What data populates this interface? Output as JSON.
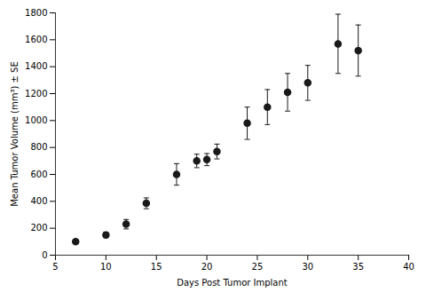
{
  "chart_data": {
    "type": "scatter",
    "xlabel": "Days Post Tumor Implant",
    "ylabel": "Mean Tumor Volume (mm³) ± SE",
    "x": [
      7,
      10,
      12,
      14,
      17,
      19,
      20,
      21,
      24,
      26,
      28,
      30,
      33,
      35
    ],
    "values": [
      100,
      150,
      230,
      385,
      600,
      700,
      710,
      770,
      980,
      1100,
      1210,
      1280,
      1570,
      1520
    ],
    "yerr": [
      15,
      20,
      35,
      40,
      80,
      50,
      45,
      55,
      120,
      130,
      140,
      130,
      220,
      190
    ],
    "color": "#1a1a1a",
    "marker": "o",
    "xlim": [
      5,
      40
    ],
    "ylim": [
      0,
      1800
    ],
    "xticks": [
      5,
      10,
      15,
      20,
      25,
      30,
      35,
      40
    ],
    "yticks": [
      0,
      200,
      400,
      600,
      800,
      1000,
      1200,
      1400,
      1600,
      1800
    ],
    "grid": false
  }
}
